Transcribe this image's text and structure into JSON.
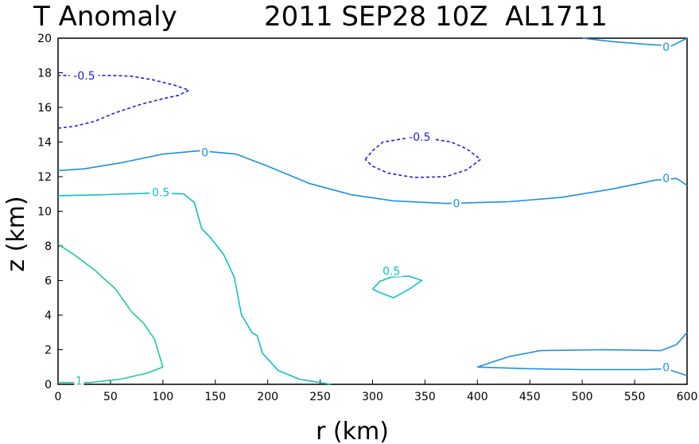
{
  "chart_data": {
    "type": "contour",
    "title_left": "T Anomaly",
    "title_right": "2011 SEP28 10Z  AL1711",
    "xlabel": "r (km)",
    "ylabel": "z (km)",
    "xlim": [
      0,
      600
    ],
    "ylim": [
      0,
      20
    ],
    "xticks": [
      0,
      50,
      100,
      150,
      200,
      250,
      300,
      350,
      400,
      450,
      500,
      550,
      600
    ],
    "yticks": [
      0,
      2,
      4,
      6,
      8,
      10,
      12,
      14,
      16,
      18,
      20
    ],
    "colors": {
      "neg": "#2020dd",
      "zero": "#1e90e0",
      "pos05": "#10c0c0",
      "pos1": "#20c8a0"
    },
    "contours": [
      {
        "level": "-0.5",
        "style": "neg",
        "dashed": true,
        "points": [
          [
            0,
            14.8
          ],
          [
            15,
            14.9
          ],
          [
            35,
            15.2
          ],
          [
            55,
            15.7
          ],
          [
            80,
            16.2
          ],
          [
            100,
            16.5
          ],
          [
            115,
            16.7
          ],
          [
            125,
            17.0
          ],
          [
            110,
            17.3
          ],
          [
            90,
            17.6
          ],
          [
            70,
            17.8
          ],
          [
            50,
            17.85
          ],
          [
            25,
            17.85
          ],
          [
            0,
            17.85
          ]
        ]
      },
      {
        "level": "-0.5",
        "style": "neg",
        "dashed": true,
        "points": [
          [
            293,
            13.0
          ],
          [
            300,
            13.5
          ],
          [
            310,
            14.0
          ],
          [
            330,
            14.2
          ],
          [
            355,
            14.2
          ],
          [
            375,
            14.0
          ],
          [
            390,
            13.6
          ],
          [
            403,
            13.0
          ],
          [
            390,
            12.4
          ],
          [
            370,
            12.0
          ],
          [
            340,
            11.95
          ],
          [
            315,
            12.2
          ],
          [
            300,
            12.6
          ],
          [
            293,
            13.0
          ]
        ]
      },
      {
        "level": "0",
        "style": "zero",
        "dashed": false,
        "points": [
          [
            0,
            12.35
          ],
          [
            25,
            12.45
          ],
          [
            60,
            12.8
          ],
          [
            100,
            13.3
          ],
          [
            135,
            13.5
          ],
          [
            170,
            13.3
          ],
          [
            200,
            12.6
          ],
          [
            240,
            11.6
          ],
          [
            280,
            10.95
          ],
          [
            320,
            10.6
          ],
          [
            370,
            10.45
          ],
          [
            430,
            10.55
          ],
          [
            480,
            10.8
          ],
          [
            530,
            11.3
          ],
          [
            570,
            11.8
          ],
          [
            590,
            11.9
          ],
          [
            600,
            11.5
          ]
        ]
      },
      {
        "level": "0",
        "style": "zero",
        "dashed": false,
        "points": [
          [
            500,
            20.0
          ],
          [
            530,
            19.8
          ],
          [
            560,
            19.65
          ],
          [
            585,
            19.55
          ],
          [
            600,
            20.0
          ]
        ]
      },
      {
        "level": "0",
        "style": "zero",
        "dashed": false,
        "points": [
          [
            400,
            1.0
          ],
          [
            430,
            1.6
          ],
          [
            460,
            1.95
          ],
          [
            520,
            2.0
          ],
          [
            575,
            1.95
          ],
          [
            590,
            2.3
          ],
          [
            600,
            3.0
          ]
        ]
      },
      {
        "level": "0",
        "style": "zero",
        "dashed": false,
        "points": [
          [
            400,
            1.0
          ],
          [
            450,
            0.9
          ],
          [
            500,
            0.85
          ],
          [
            560,
            0.85
          ],
          [
            580,
            0.9
          ],
          [
            600,
            0.5
          ]
        ]
      },
      {
        "level": "0.5",
        "style": "pos05",
        "dashed": false,
        "points": [
          [
            0,
            10.9
          ],
          [
            40,
            10.95
          ],
          [
            90,
            11.05
          ],
          [
            120,
            11.0
          ],
          [
            130,
            10.5
          ],
          [
            137,
            9.0
          ],
          [
            145,
            8.5
          ],
          [
            158,
            7.5
          ],
          [
            168,
            6.2
          ],
          [
            175,
            4.0
          ],
          [
            185,
            3.0
          ],
          [
            190,
            2.8
          ],
          [
            195,
            1.8
          ],
          [
            210,
            0.8
          ],
          [
            230,
            0.3
          ],
          [
            260,
            0.0
          ]
        ]
      },
      {
        "level": "0.5",
        "style": "pos05",
        "dashed": false,
        "points": [
          [
            300,
            5.5
          ],
          [
            307,
            5.95
          ],
          [
            318,
            6.2
          ],
          [
            335,
            6.25
          ],
          [
            347,
            6.0
          ],
          [
            335,
            5.5
          ],
          [
            320,
            5.0
          ],
          [
            307,
            5.3
          ],
          [
            300,
            5.5
          ]
        ]
      },
      {
        "level": "1",
        "style": "pos1",
        "dashed": false,
        "points": [
          [
            0,
            8.1
          ],
          [
            15,
            7.5
          ],
          [
            35,
            6.6
          ],
          [
            55,
            5.5
          ],
          [
            70,
            4.2
          ],
          [
            82,
            3.5
          ],
          [
            92,
            2.6
          ],
          [
            100,
            1.0
          ],
          [
            85,
            0.65
          ],
          [
            60,
            0.3
          ],
          [
            30,
            0.1
          ],
          [
            0,
            0.1
          ]
        ]
      }
    ],
    "contour_labels": [
      {
        "text": "-0.5",
        "x": 25,
        "y": 17.85,
        "style": "neg"
      },
      {
        "text": "-0.5",
        "x": 345,
        "y": 14.3,
        "style": "neg"
      },
      {
        "text": "0",
        "x": 140,
        "y": 13.4,
        "style": "zero"
      },
      {
        "text": "0",
        "x": 380,
        "y": 10.45,
        "style": "zero"
      },
      {
        "text": "0",
        "x": 580,
        "y": 11.9,
        "style": "zero"
      },
      {
        "text": "0",
        "x": 580,
        "y": 19.5,
        "style": "zero"
      },
      {
        "text": "0",
        "x": 580,
        "y": 1.0,
        "style": "zero"
      },
      {
        "text": "0.5",
        "x": 98,
        "y": 11.1,
        "style": "pos05"
      },
      {
        "text": "0.5",
        "x": 318,
        "y": 6.55,
        "style": "pos05"
      },
      {
        "text": "1",
        "x": 20,
        "y": 0.2,
        "style": "pos1"
      }
    ]
  }
}
